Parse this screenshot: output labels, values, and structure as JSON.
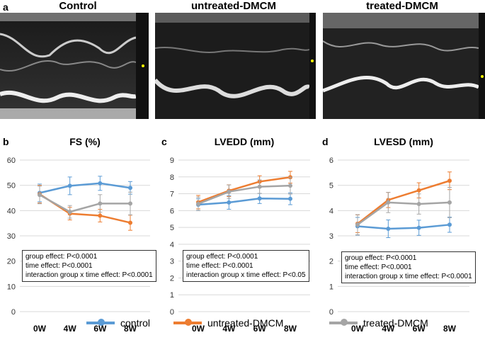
{
  "panel_a": {
    "letter": "a",
    "titles": [
      "Control",
      "untreated-DMCM",
      "treated-DMCM"
    ]
  },
  "colors": {
    "control": "#5b9bd5",
    "untreated": "#ed7d31",
    "treated": "#a5a5a5"
  },
  "chart_data": [
    {
      "type": "line",
      "letter": "b",
      "title": "FS (%)",
      "categories": [
        "0W",
        "4W",
        "6W",
        "8W"
      ],
      "ylim": [
        0,
        60
      ],
      "yticks": [
        0,
        10,
        20,
        30,
        40,
        50,
        60
      ],
      "series": [
        {
          "name": "control",
          "values": [
            47,
            49.8,
            50.8,
            49
          ],
          "errors": [
            3.5,
            3.5,
            2.8,
            2.5
          ]
        },
        {
          "name": "untreated-DMCM",
          "values": [
            46.5,
            38.8,
            38,
            35.2
          ],
          "errors": [
            3.5,
            2.5,
            2.5,
            3
          ]
        },
        {
          "name": "treated-DMCM",
          "values": [
            46.2,
            39.5,
            42.8,
            42.8
          ],
          "errors": [
            3.5,
            2.5,
            3.5,
            4.5
          ]
        }
      ],
      "stats": [
        "group effect: P<0.0001",
        "time effect: P<0.0001",
        "interaction group x time effect: P<0.0001"
      ]
    },
    {
      "type": "line",
      "letter": "c",
      "title": "LVEDD (mm)",
      "categories": [
        "0W",
        "4W",
        "6W",
        "8W"
      ],
      "ylim": [
        0,
        9
      ],
      "yticks": [
        0,
        1,
        2,
        3,
        4,
        5,
        6,
        7,
        8,
        9
      ],
      "series": [
        {
          "name": "control",
          "values": [
            6.35,
            6.48,
            6.72,
            6.7
          ],
          "errors": [
            0.35,
            0.4,
            0.3,
            0.35
          ]
        },
        {
          "name": "untreated-DMCM",
          "values": [
            6.5,
            7.18,
            7.72,
            7.98
          ],
          "errors": [
            0.4,
            0.35,
            0.35,
            0.35
          ]
        },
        {
          "name": "treated-DMCM",
          "values": [
            6.4,
            7.12,
            7.42,
            7.48
          ],
          "errors": [
            0.4,
            0.4,
            0.4,
            0.5
          ]
        }
      ],
      "stats": [
        "group effect: P<0.0001",
        "time effect: P<0.0001",
        "interaction group x time effect: P<0.05"
      ]
    },
    {
      "type": "line",
      "letter": "d",
      "title": "LVESD (mm)",
      "categories": [
        "0W",
        "4W",
        "6W",
        "8W"
      ],
      "ylim": [
        0,
        6
      ],
      "yticks": [
        0,
        1,
        2,
        3,
        4,
        5,
        6
      ],
      "series": [
        {
          "name": "control",
          "values": [
            3.38,
            3.28,
            3.32,
            3.44
          ],
          "errors": [
            0.35,
            0.35,
            0.3,
            0.3
          ]
        },
        {
          "name": "untreated-DMCM",
          "values": [
            3.48,
            4.42,
            4.8,
            5.18
          ],
          "errors": [
            0.35,
            0.3,
            0.3,
            0.35
          ]
        },
        {
          "name": "treated-DMCM",
          "values": [
            3.44,
            4.32,
            4.26,
            4.32
          ],
          "errors": [
            0.4,
            0.4,
            0.4,
            0.6
          ]
        }
      ],
      "stats": [
        "group effect: P<0.0001",
        "time effect: P<0.0001",
        "interaction group x time effect: P<0.0001"
      ]
    }
  ],
  "legend": [
    {
      "name": "control",
      "color_key": "control"
    },
    {
      "name": "untreated-DMCM",
      "color_key": "untreated"
    },
    {
      "name": "treated-DMCM",
      "color_key": "treated"
    }
  ]
}
